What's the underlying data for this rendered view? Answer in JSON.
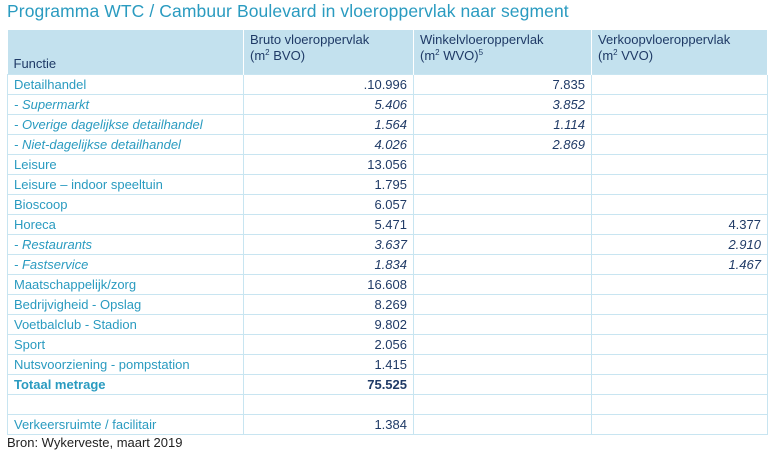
{
  "title": "Programma WTC / Cambuur Boulevard in vloeroppervlak naar segment",
  "headers": {
    "functie": "Functie",
    "bruto_line1": "Bruto vloeroppervlak",
    "bruto_unit_a": "(m",
    "bruto_unit_sup": "2",
    "bruto_unit_b": " BVO)",
    "winkel_line1": "Winkelvloeroppervlak",
    "winkel_unit_a": "(m",
    "winkel_unit_sup": "2",
    "winkel_unit_b": " WVO)",
    "winkel_note": "5",
    "verkoop_line1": "Verkoopvloeroppervlak",
    "verkoop_unit_a": "(m",
    "verkoop_unit_sup": "2",
    "verkoop_unit_b": " VVO)"
  },
  "rows": [
    {
      "label": "Detailhandel",
      "bruto": ".10.996",
      "winkel": "7.835",
      "verkoop": "",
      "style": "normal"
    },
    {
      "label": "- Supermarkt",
      "bruto": "5.406",
      "winkel": "3.852",
      "verkoop": "",
      "style": "sub"
    },
    {
      "label": "- Overige dagelijkse detailhandel",
      "bruto": "1.564",
      "winkel": "1.114",
      "verkoop": "",
      "style": "sub"
    },
    {
      "label": "- Niet-dagelijkse detailhandel",
      "bruto": "4.026",
      "winkel": "2.869",
      "verkoop": "",
      "style": "sub"
    },
    {
      "label": "Leisure",
      "bruto": "13.056",
      "winkel": "",
      "verkoop": "",
      "style": "normal"
    },
    {
      "label": "Leisure – indoor speeltuin",
      "bruto": "1.795",
      "winkel": "",
      "verkoop": "",
      "style": "normal"
    },
    {
      "label": "Bioscoop",
      "bruto": "6.057",
      "winkel": "",
      "verkoop": "",
      "style": "normal"
    },
    {
      "label": "Horeca",
      "bruto": "5.471",
      "winkel": "",
      "verkoop": "4.377",
      "style": "normal"
    },
    {
      "label": "- Restaurants",
      "bruto": "3.637",
      "winkel": "",
      "verkoop": "2.910",
      "style": "sub"
    },
    {
      "label": "- Fastservice",
      "bruto": "1.834",
      "winkel": "",
      "verkoop": "1.467",
      "style": "sub"
    },
    {
      "label": "Maatschappelijk/zorg",
      "bruto": "16.608",
      "winkel": "",
      "verkoop": "",
      "style": "normal"
    },
    {
      "label": "Bedrijvigheid - Opslag",
      "bruto": "8.269",
      "winkel": "",
      "verkoop": "",
      "style": "normal"
    },
    {
      "label": "Voetbalclub - Stadion",
      "bruto": "9.802",
      "winkel": "",
      "verkoop": "",
      "style": "normal"
    },
    {
      "label": "Sport",
      "bruto": "2.056",
      "winkel": "",
      "verkoop": "",
      "style": "normal"
    },
    {
      "label": "Nutsvoorziening - pompstation",
      "bruto": "1.415",
      "winkel": "",
      "verkoop": "",
      "style": "normal"
    },
    {
      "label": "Totaal metrage",
      "bruto": "75.525",
      "winkel": "",
      "verkoop": "",
      "style": "total"
    },
    {
      "label": "",
      "bruto": "",
      "winkel": "",
      "verkoop": "",
      "style": "normal"
    },
    {
      "label": "Verkeersruimte / facilitair",
      "bruto": "1.384",
      "winkel": "",
      "verkoop": "",
      "style": "normal"
    }
  ],
  "source": "Bron: Wykerveste, maart 2019"
}
